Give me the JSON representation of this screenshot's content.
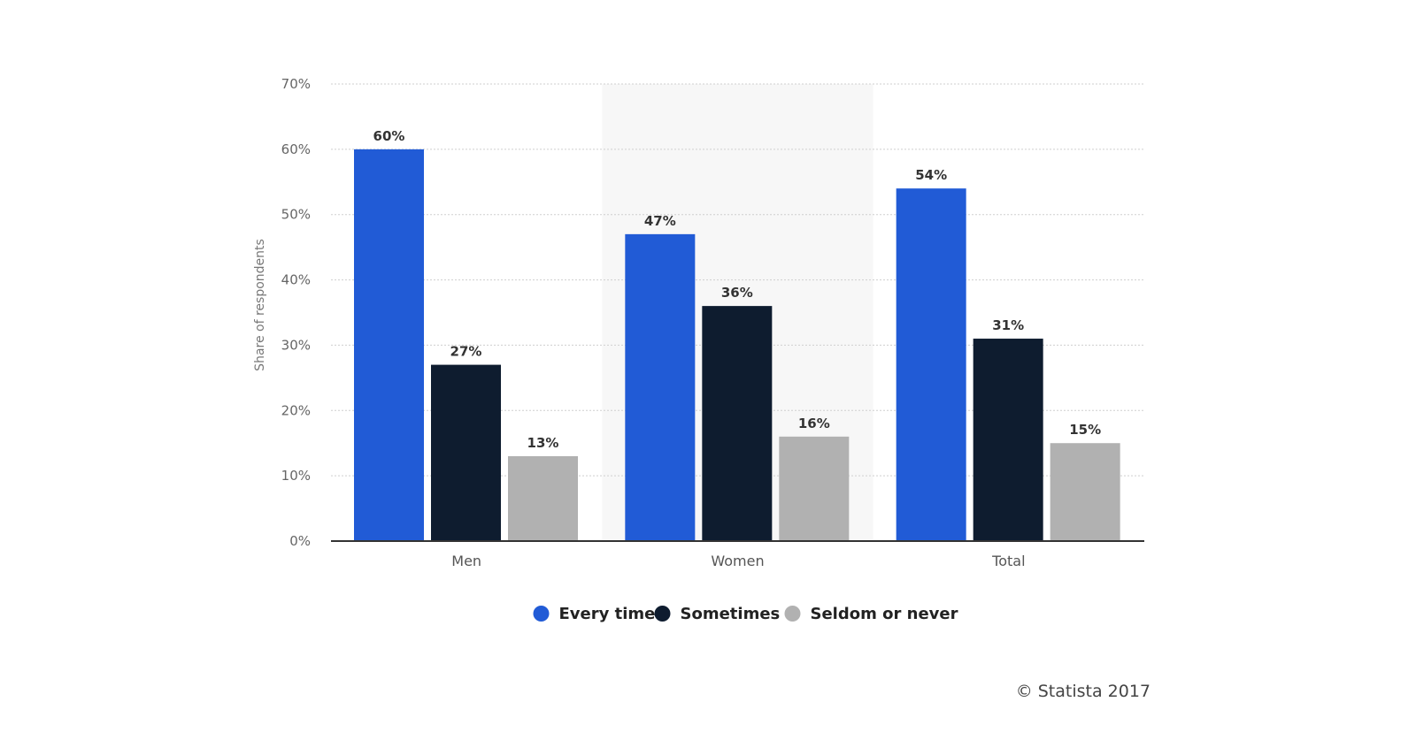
{
  "chart_data": {
    "type": "bar",
    "categories": [
      "Men",
      "Women",
      "Total"
    ],
    "series": [
      {
        "name": "Every time",
        "values": [
          60,
          47,
          54
        ],
        "color": "#215bd6"
      },
      {
        "name": "Sometimes",
        "values": [
          27,
          36,
          31
        ],
        "color": "#0e1c2f"
      },
      {
        "name": "Seldom or never",
        "values": [
          13,
          16,
          15
        ],
        "color": "#b1b1b1"
      }
    ],
    "value_suffix": "%",
    "ylabel": "Share of respondents",
    "xlabel": "",
    "ylim": [
      0,
      70
    ],
    "yticks": [
      0,
      10,
      20,
      30,
      40,
      50,
      60,
      70
    ],
    "ytick_labels": [
      "0%",
      "10%",
      "20%",
      "30%",
      "40%",
      "50%",
      "60%",
      "70%"
    ],
    "grid": true,
    "highlighted_category": "Women",
    "legend_position": "bottom-center"
  },
  "credit": "© Statista 2017"
}
